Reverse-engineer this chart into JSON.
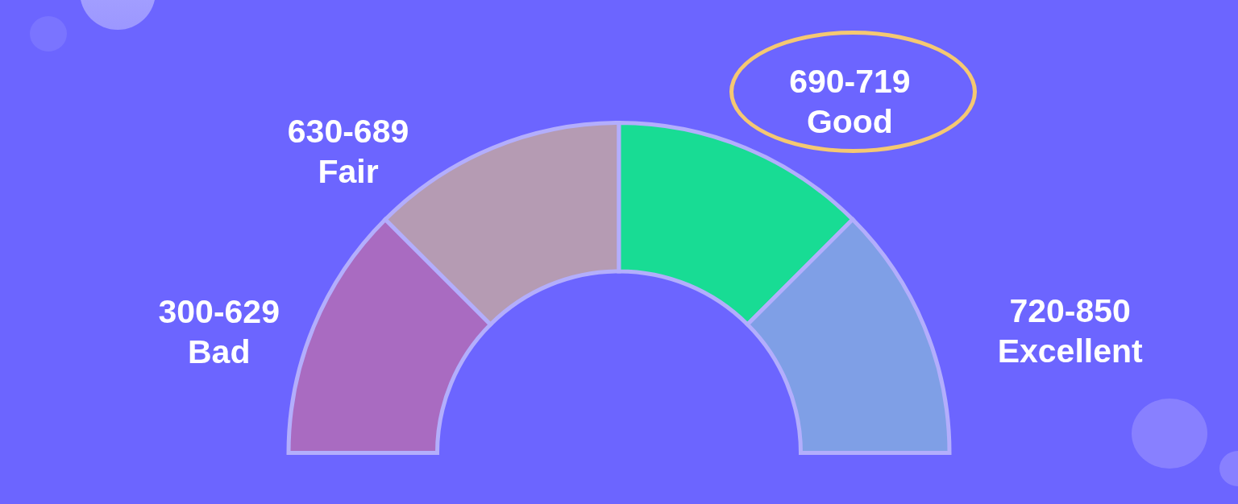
{
  "chart_data": {
    "type": "donut",
    "categories": [
      "300-629\nBad",
      "630-689\nFair",
      "690-719\nGood",
      "720-850\nExcellent"
    ],
    "values": [
      25,
      25,
      25,
      25
    ],
    "colors": [
      "#a96bc1",
      "#b59bb3",
      "#18dc94",
      "#7f9fe6"
    ]
  }
}
